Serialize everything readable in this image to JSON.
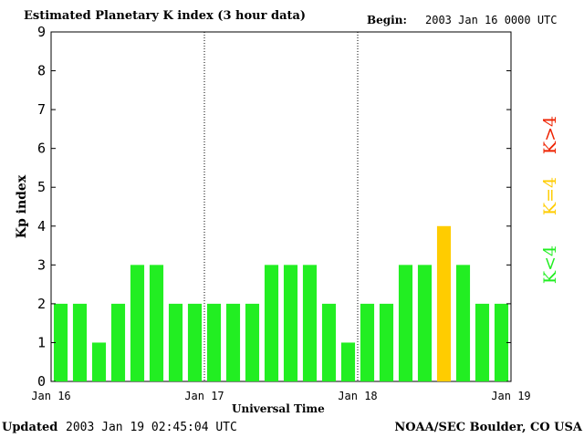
{
  "chart_data": {
    "type": "bar",
    "title": "Estimated Planetary K index (3 hour data)",
    "begin_label": "Begin:",
    "begin_value": "2003 Jan 16 0000 UTC",
    "xlabel": "Universal Time",
    "ylabel": "Kp index",
    "ylim": [
      0,
      9
    ],
    "yticks": [
      "0",
      "1",
      "2",
      "3",
      "4",
      "5",
      "6",
      "7",
      "8",
      "9"
    ],
    "x_tick_labels": [
      "Jan 16",
      "Jan 17",
      "Jan 18",
      "Jan 19"
    ],
    "day_separators": [
      "Jan 17",
      "Jan 18"
    ],
    "values": [
      2,
      2,
      1,
      2,
      3,
      3,
      2,
      2,
      2,
      2,
      2,
      3,
      3,
      3,
      2,
      1,
      2,
      2,
      3,
      3,
      4,
      3,
      2,
      2
    ],
    "legend": [
      {
        "label": "K<4",
        "color": "#22ee22"
      },
      {
        "label": "K=4",
        "color": "#ffcc00"
      },
      {
        "label": "K>4",
        "color": "#ee2200"
      }
    ],
    "colors": {
      "low": "#22ee22",
      "equal": "#ffcc00",
      "high": "#ee2200"
    },
    "grid": false
  },
  "footer": {
    "updated_label": "Updated",
    "updated_value": "2003 Jan 19 02:45:04 UTC",
    "source": "NOAA/SEC Boulder, CO USA"
  }
}
